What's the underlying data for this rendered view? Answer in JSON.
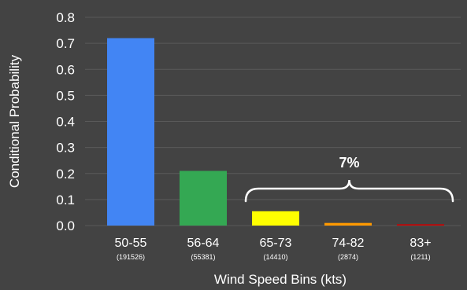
{
  "chart_data": {
    "type": "bar",
    "categories": [
      "50-55",
      "56-64",
      "65-73",
      "74-82",
      "83+"
    ],
    "counts": [
      "(191526)",
      "(55381)",
      "(14410)",
      "(2874)",
      "(1211)"
    ],
    "values": [
      0.72,
      0.21,
      0.055,
      0.01,
      0.005
    ],
    "colors": [
      "#4285f4",
      "#34a853",
      "#ffff00",
      "#ff9900",
      "#cc0000"
    ],
    "xlabel": "Wind Speed Bins (kts)",
    "ylabel": "Conditional Probability",
    "yticks": [
      "0.0",
      "0.1",
      "0.2",
      "0.3",
      "0.4",
      "0.5",
      "0.6",
      "0.7",
      "0.8"
    ],
    "ylim": [
      0,
      0.8
    ],
    "grid": true,
    "background": "#434343",
    "gridline_color": "#5a5a5a",
    "annotation": {
      "text": "7%",
      "spans": [
        "65-73",
        "74-82",
        "83+"
      ]
    }
  }
}
